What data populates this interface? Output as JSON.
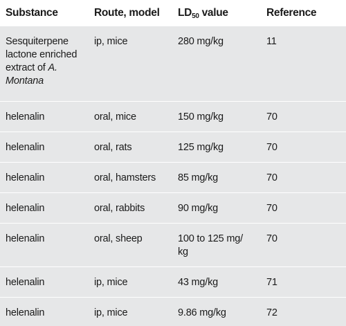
{
  "table": {
    "headers": {
      "substance": "Substance",
      "route": "Route, model",
      "ld_prefix": "LD",
      "ld_sub": "50",
      "ld_suffix": " value",
      "reference": "Reference"
    },
    "rows": [
      {
        "substance_plain": "Sesquiterpene lactone enriched extract of ",
        "substance_italic": "A. Montana",
        "route": "ip, mice",
        "value": "280 mg/kg",
        "reference": "11"
      },
      {
        "substance": "helenalin",
        "route": "oral, mice",
        "value": "150 mg/kg",
        "reference": "70"
      },
      {
        "substance": "helenalin",
        "route": "oral, rats",
        "value": "125 mg/kg",
        "reference": "70"
      },
      {
        "substance": "helenalin",
        "route": "oral, hamsters",
        "value": "85 mg/kg",
        "reference": "70"
      },
      {
        "substance": "helenalin",
        "route": "oral, rabbits",
        "value": "90 mg/kg",
        "reference": "70"
      },
      {
        "substance": "helenalin",
        "route": "oral, sheep",
        "value": "100 to 125 mg/ kg",
        "reference": "70"
      },
      {
        "substance": "helenalin",
        "route": "ip, mice",
        "value": "43 mg/kg",
        "reference": "71"
      },
      {
        "substance": "helenalin",
        "route": "ip, mice",
        "value": "9.86 mg/kg",
        "reference": "72"
      }
    ]
  }
}
